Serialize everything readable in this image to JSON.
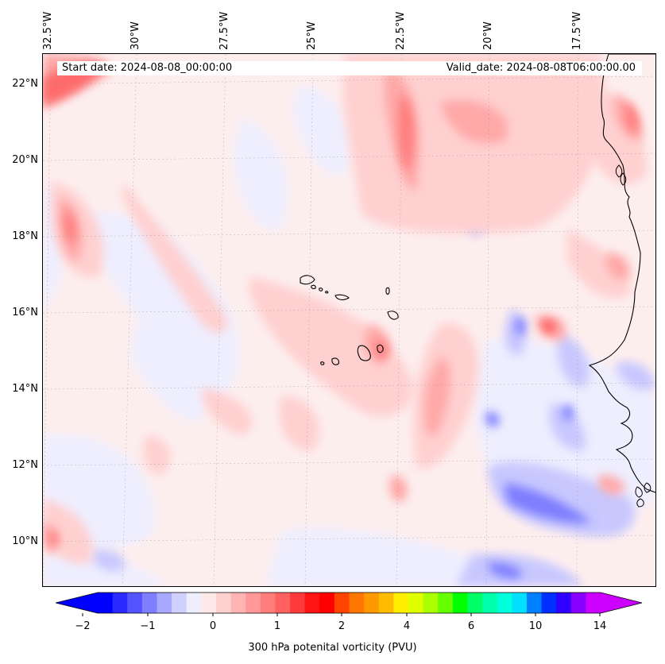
{
  "header": {
    "start_date": "Start date: 2024-08-08_00:00:00",
    "valid_date": "Valid_date: 2024-08-08T06:00:00.00"
  },
  "longitude_labels": [
    "32.5°W",
    "30°W",
    "27.5°W",
    "25°W",
    "22.5°W",
    "20°W",
    "17.5°W"
  ],
  "latitude_labels": [
    "22°N",
    "20°N",
    "18°N",
    "16°N",
    "14°N",
    "12°N",
    "10°N"
  ],
  "colorbar": {
    "label": "300 hPa potenital vorticity (PVU)",
    "tick_labels": [
      "−2",
      "−1",
      "0",
      "1",
      "2",
      "4",
      "6",
      "10",
      "14"
    ],
    "colors": [
      "#0000ff",
      "#2a2aff",
      "#5454ff",
      "#7e7eff",
      "#a8a8ff",
      "#d0d0ff",
      "#eeeeff",
      "#ffe8e8",
      "#ffd0d0",
      "#ffb4b4",
      "#ff9898",
      "#ff7c7c",
      "#ff6060",
      "#ff3a3a",
      "#ff1414",
      "#ff0000",
      "#ff4400",
      "#ff7700",
      "#ff9900",
      "#ffbb00",
      "#ffee00",
      "#dfff00",
      "#aaff00",
      "#66ff00",
      "#00ff00",
      "#00ff66",
      "#00ffaa",
      "#00ffdd",
      "#00e0ff",
      "#0080ff",
      "#0030ff",
      "#3000ff",
      "#8800ff",
      "#cc00ff"
    ],
    "extend_min_color": "#0000ff",
    "extend_max_color": "#cc00ff"
  },
  "map": {
    "projection": "rotated lat-lon",
    "region": "Eastern tropical Atlantic, Cape Verde and West African coast",
    "lon_range_deg_w": [
      33,
      15.5
    ],
    "lat_range_deg_n": [
      9,
      22.7
    ],
    "background_color": "#fdeeee",
    "coastline_color": "#000000",
    "gridline_style": "dotted gray"
  }
}
